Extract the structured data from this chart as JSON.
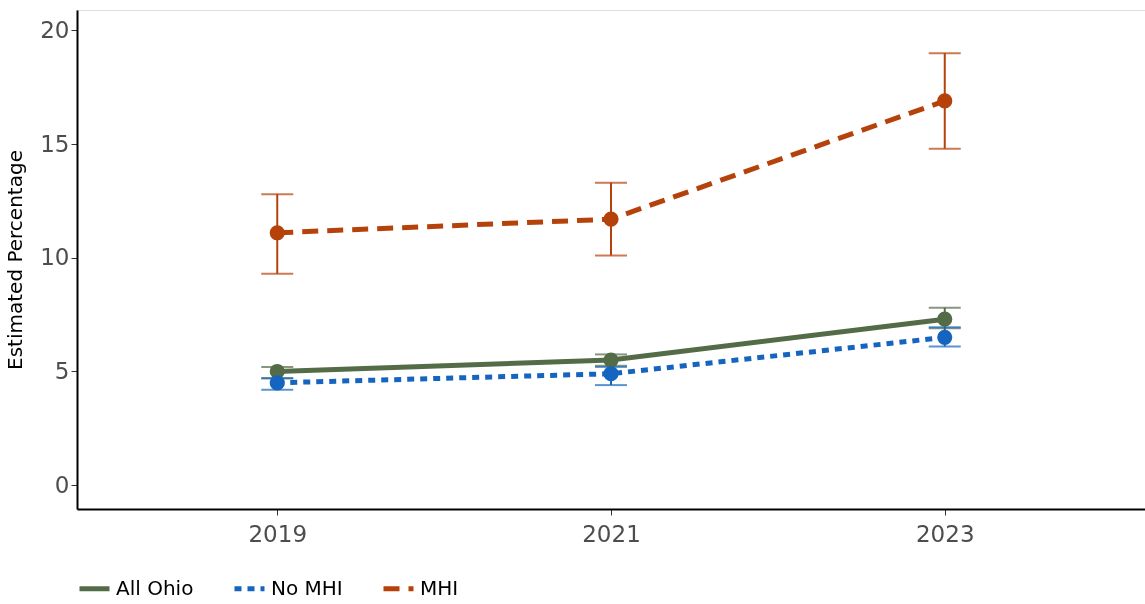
{
  "chart_data": {
    "type": "line",
    "ylabel": "Estimated Percentage",
    "x": [
      2019,
      2021,
      2023
    ],
    "xlim": [
      2017.8,
      2024.2
    ],
    "xticks": [
      2019,
      2021,
      2023
    ],
    "ylim": [
      -1.05,
      20.9
    ],
    "yticks": [
      0,
      5,
      10,
      15,
      20
    ],
    "grid": false,
    "legend": "bottom",
    "marker": "circle",
    "series": [
      {
        "name": "All Ohio",
        "color": "#536b47",
        "line_style": "solid",
        "values": [
          5.0,
          5.5,
          7.3
        ],
        "errors": [
          [
            4.7,
            5.2
          ],
          [
            5.25,
            5.75
          ],
          [
            6.9,
            7.8
          ]
        ]
      },
      {
        "name": "No MHI",
        "color": "#1565c0",
        "line_style": "dotted",
        "values": [
          4.5,
          4.9,
          6.5
        ],
        "errors": [
          [
            4.2,
            4.7
          ],
          [
            4.4,
            5.2
          ],
          [
            6.1,
            6.95
          ]
        ]
      },
      {
        "name": "MHI",
        "color": "#b5420a",
        "line_style": "dashed",
        "values": [
          11.1,
          11.7,
          16.9
        ],
        "errors": [
          [
            9.3,
            12.8
          ],
          [
            10.1,
            13.3
          ],
          [
            14.8,
            19.0
          ]
        ]
      }
    ]
  }
}
